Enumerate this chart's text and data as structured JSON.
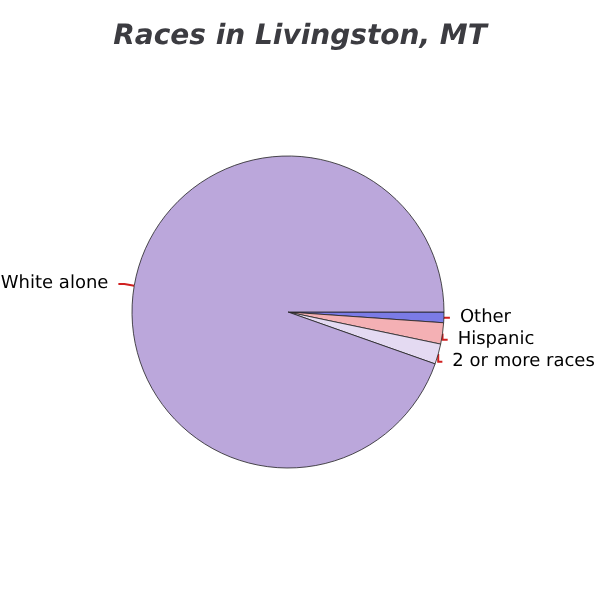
{
  "chart_data": {
    "type": "pie",
    "title": "Races in Livingston, MT",
    "categories": [
      "Other",
      "Hispanic",
      "2 or more races",
      "White alone"
    ],
    "values": [
      1.1,
      2.2,
      2.1,
      94.6
    ],
    "colors": [
      "#7b7be6",
      "#f4b0b4",
      "#e4daf2",
      "#bba7db"
    ]
  }
}
